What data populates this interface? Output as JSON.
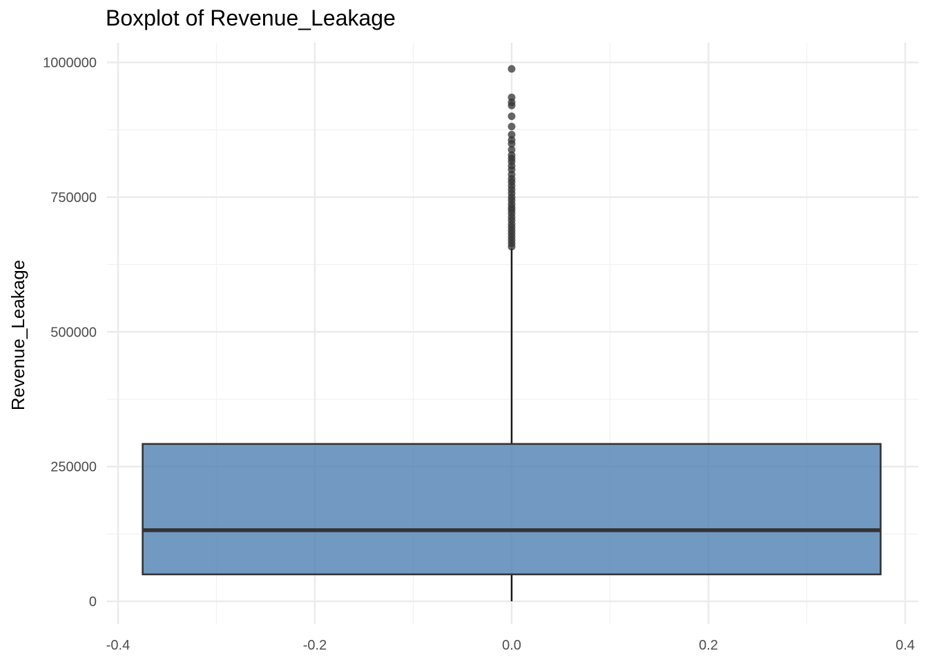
{
  "chart_data": {
    "type": "boxplot",
    "title": "Boxplot of Revenue_Leakage",
    "xlabel": "",
    "ylabel": "Revenue_Leakage",
    "xlim": [
      -0.4,
      0.4
    ],
    "ylim": [
      0,
      1000000
    ],
    "x_ticks": [
      -0.4,
      -0.2,
      0.0,
      0.2,
      0.4
    ],
    "x_tick_labels": [
      "-0.4",
      "-0.2",
      "0.0",
      "0.2",
      "0.4"
    ],
    "y_ticks": [
      0,
      250000,
      500000,
      750000,
      1000000
    ],
    "y_tick_labels": [
      "0",
      "250000",
      "500000",
      "750000",
      "1000000"
    ],
    "grid": true,
    "box": {
      "x_center": 0.0,
      "x_min": -0.375,
      "x_max": 0.375,
      "whisker_low": 0,
      "q1": 50000,
      "median": 132000,
      "q3": 292000,
      "whisker_high": 655000
    },
    "outliers": [
      988000,
      935000,
      926000,
      920000,
      900000,
      881000,
      866000,
      856000,
      849000,
      838000,
      828000,
      822000,
      816000,
      808000,
      801000,
      792000,
      784000,
      778000,
      771000,
      764000,
      757000,
      750000,
      744000,
      737000,
      731000,
      726000,
      720000,
      713000,
      707000,
      700000,
      694000,
      688000,
      682000,
      676000,
      670000,
      664000,
      658000
    ],
    "colors": {
      "box_fill": "#4f7fb3",
      "box_stroke": "#333333",
      "median": "#333333",
      "whisker": "#1a1a1a",
      "outlier": "#333333",
      "grid_major": "#ebebeb",
      "grid_minor": "#f2f2f2"
    }
  }
}
